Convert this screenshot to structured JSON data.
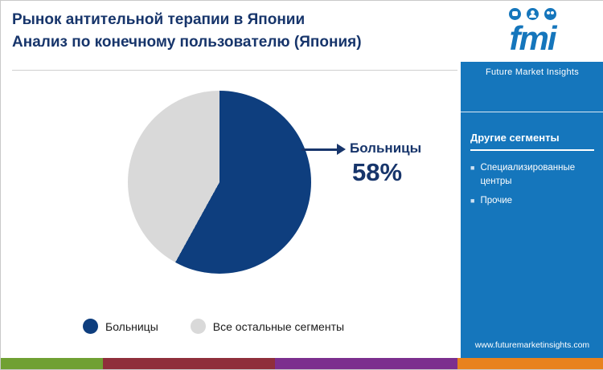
{
  "title": {
    "line1": "Рынок антительной терапии в Японии",
    "line2": "Анализ по конечному пользователю (Япония)"
  },
  "chart_data": {
    "type": "pie",
    "labels": [
      "Больницы",
      "Все остальные сегменты"
    ],
    "values": [
      58,
      42
    ],
    "colors": [
      "#0e3e7e",
      "#d9d9d9"
    ],
    "callout": {
      "label": "Больницы",
      "value": "58%"
    },
    "legend_position": "bottom"
  },
  "colors": {
    "pie_blue": "#0e3e7e",
    "pie_gray": "#d9d9d9",
    "brand_blue": "#1576bc",
    "title_navy": "#17356b"
  },
  "footer_colors": [
    "#70a033",
    "#8f2f3b",
    "#7c2f8e",
    "#e8821e"
  ],
  "sidebar": {
    "logo_text": "fmi",
    "logo_icons": [
      "chat-icon",
      "person-icon",
      "people-icon"
    ],
    "brand": "Future Market Insights",
    "heading": "Другие сегменты",
    "items": [
      "Специализированные центры",
      "Прочие"
    ],
    "url": "www.futuremarketinsights.com"
  }
}
